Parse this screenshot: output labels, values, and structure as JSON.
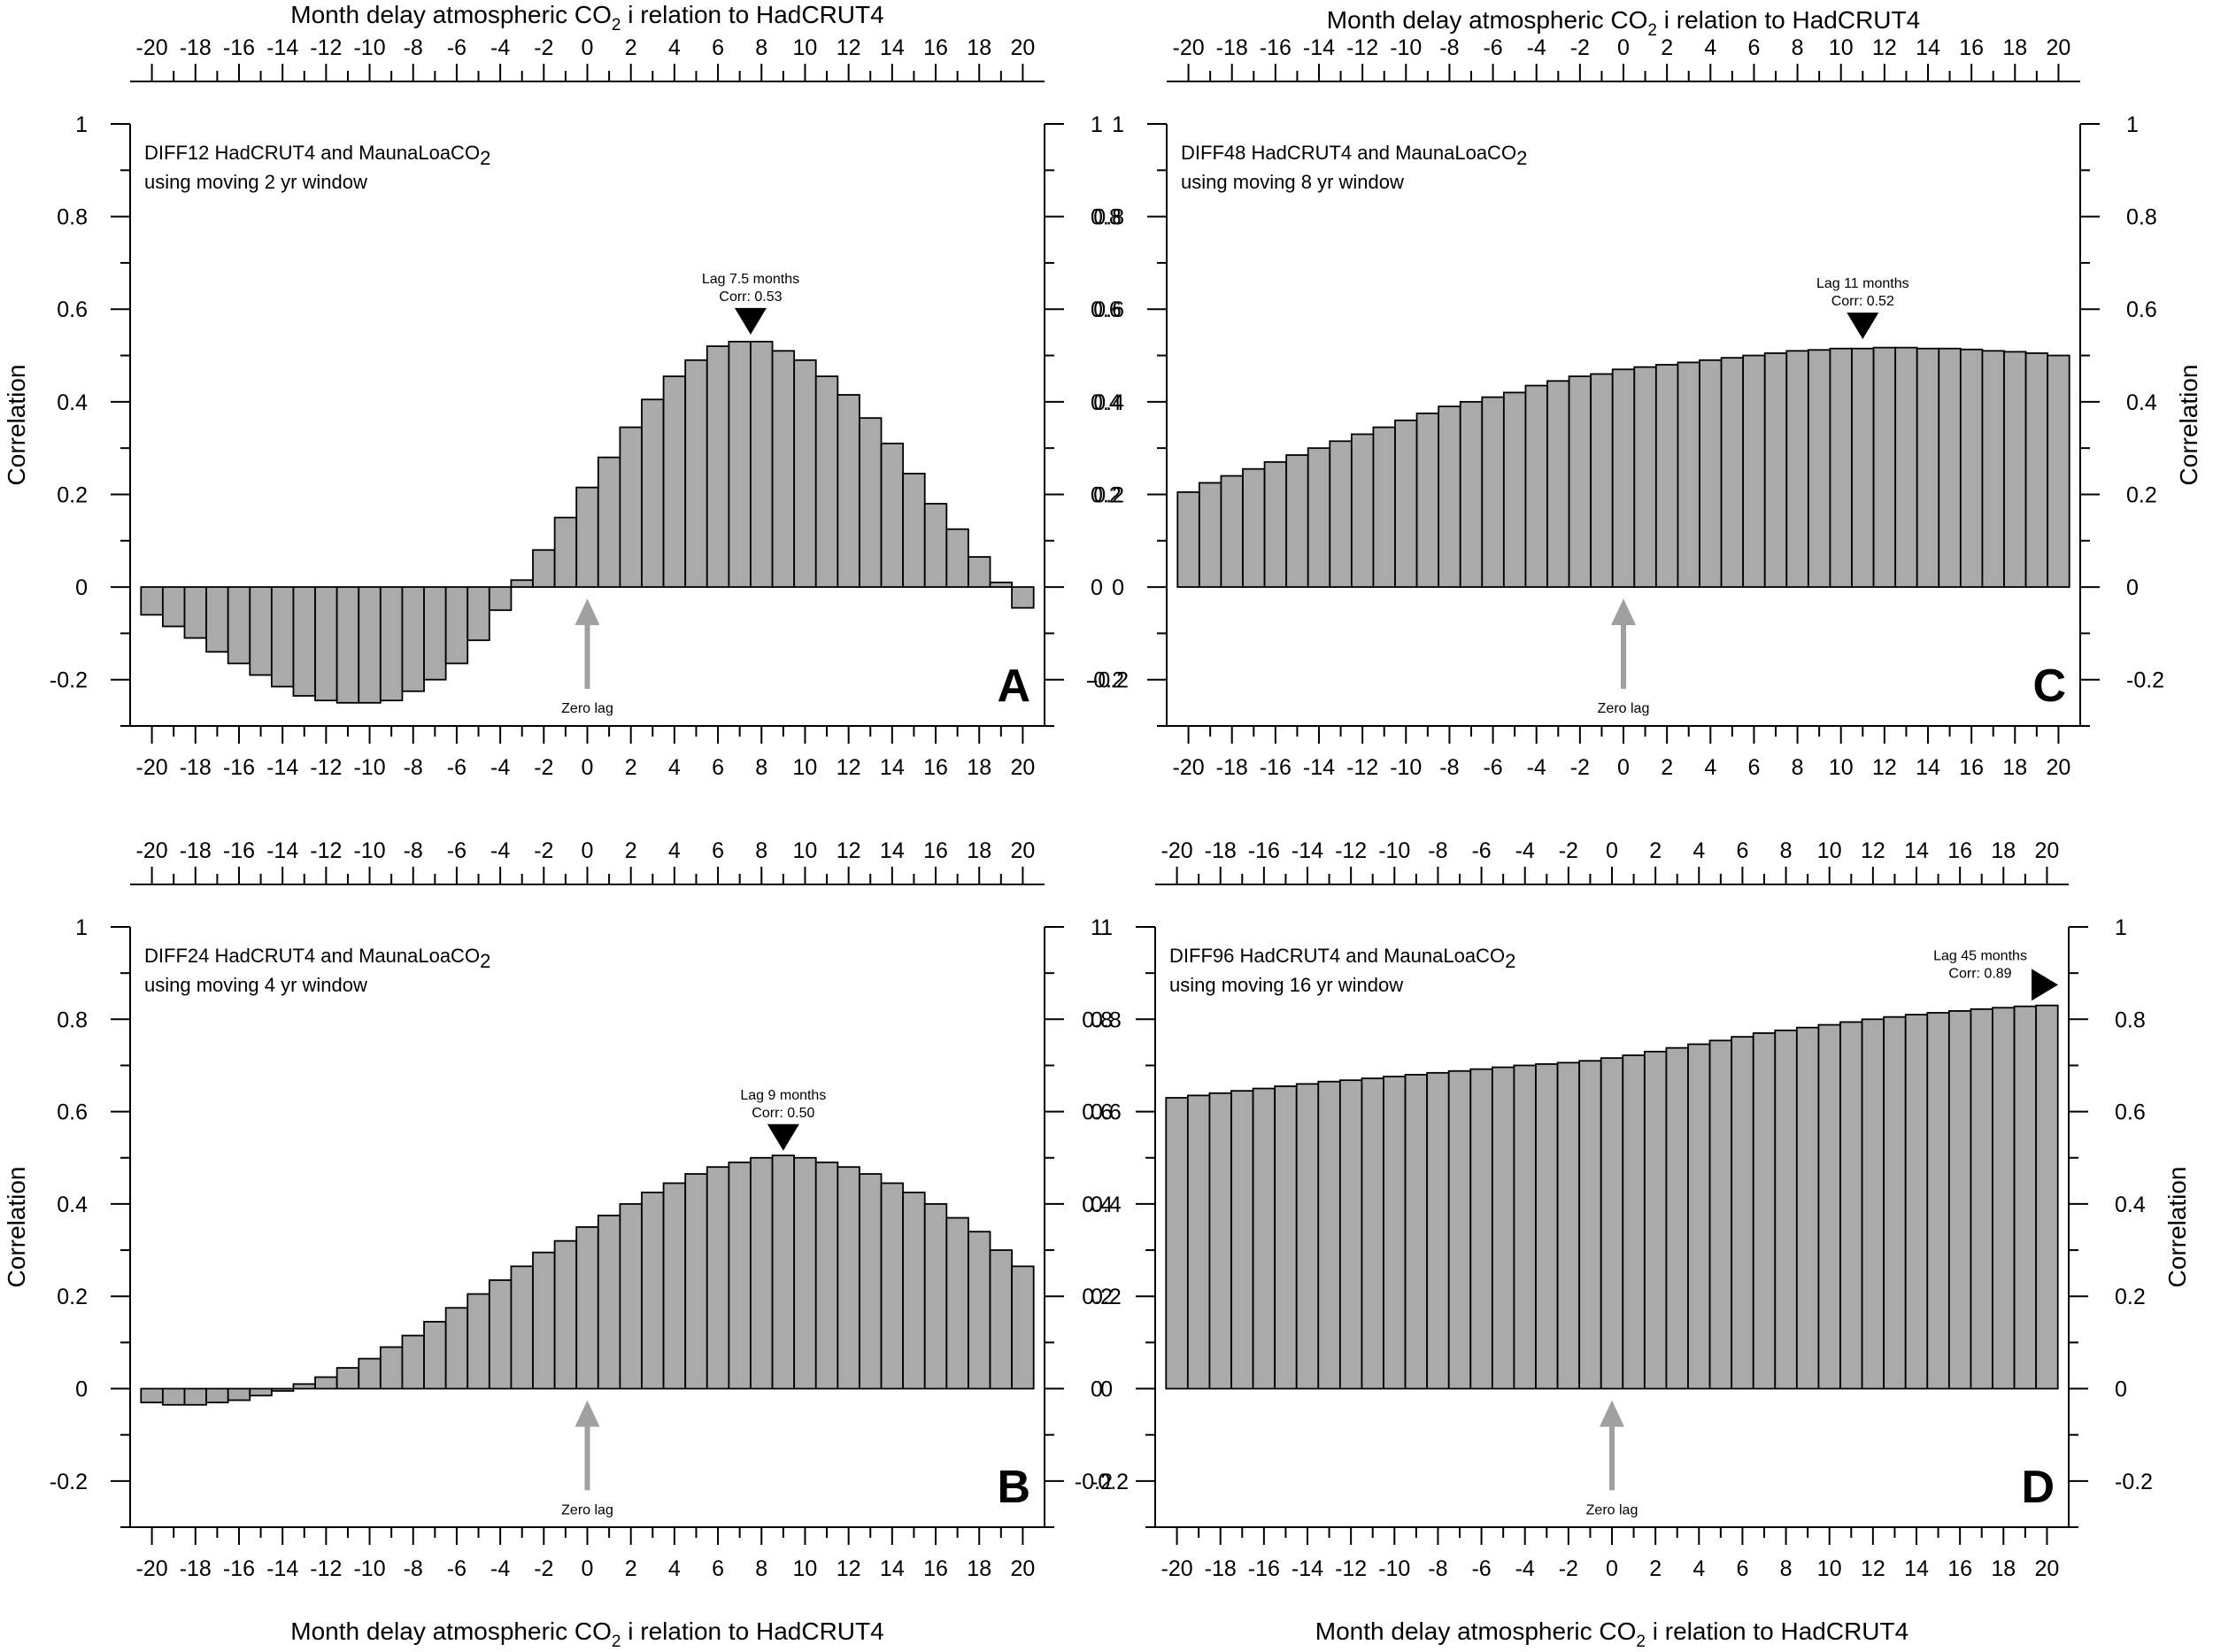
{
  "chart_data": [
    {
      "type": "bar",
      "panel_letter": "A",
      "title": "DIFF12 HadCRUT4 and MaunaLoaCO",
      "title_sub": "2",
      "subtitle": "using moving 2 yr window",
      "xlabel_top": {
        "pre": "Month delay atmospheric CO",
        "sub": "2",
        "post": " i relation to HadCRUT4"
      },
      "xlabel_bottom": null,
      "ylabel_left": "Correlation",
      "ylabel_right": null,
      "xlim": [
        -21,
        21
      ],
      "ylim": [
        -0.3,
        1.0
      ],
      "x_ticks": [
        -20,
        -18,
        -16,
        -14,
        -12,
        -10,
        -8,
        -6,
        -4,
        -2,
        0,
        2,
        4,
        6,
        8,
        10,
        12,
        14,
        16,
        18,
        20
      ],
      "y_ticks": [
        -0.2,
        0,
        0.2,
        0.4,
        0.6,
        0.8,
        1
      ],
      "y_tick_labels": [
        "-0.2",
        "0",
        "0.2",
        "0.4",
        "0.6",
        "0.8",
        "1"
      ],
      "x": [
        -20,
        -19,
        -18,
        -17,
        -16,
        -15,
        -14,
        -13,
        -12,
        -11,
        -10,
        -9,
        -8,
        -7,
        -6,
        -5,
        -4,
        -3,
        -2,
        -1,
        0,
        1,
        2,
        3,
        4,
        5,
        6,
        7,
        8,
        9,
        10,
        11,
        12,
        13,
        14,
        15,
        16,
        17,
        18,
        19,
        20
      ],
      "values": [
        -0.06,
        -0.085,
        -0.11,
        -0.14,
        -0.165,
        -0.19,
        -0.215,
        -0.235,
        -0.245,
        -0.25,
        -0.25,
        -0.245,
        -0.225,
        -0.2,
        -0.165,
        -0.115,
        -0.05,
        0.015,
        0.08,
        0.15,
        0.215,
        0.28,
        0.345,
        0.405,
        0.455,
        0.49,
        0.52,
        0.53,
        0.53,
        0.51,
        0.49,
        0.455,
        0.415,
        0.365,
        0.31,
        0.245,
        0.18,
        0.125,
        0.065,
        0.01,
        -0.045
      ],
      "annotation": {
        "lines": [
          "Lag 7.5 months",
          "Corr: 0.53"
        ],
        "x": 7.5,
        "y": 0.53,
        "marker": "down"
      },
      "zero_lag_label": "Zero lag"
    },
    {
      "type": "bar",
      "panel_letter": "C",
      "title": "DIFF48 HadCRUT4 and MaunaLoaCO",
      "title_sub": "2",
      "subtitle": "using moving 8 yr window",
      "xlabel_top": {
        "pre": "Month delay atmospheric CO",
        "sub": "2",
        "post": " i relation to HadCRUT4"
      },
      "xlabel_bottom": null,
      "ylabel_left": null,
      "ylabel_right": "Correlation",
      "xlim": [
        -21,
        21
      ],
      "ylim": [
        -0.3,
        1.0
      ],
      "x_ticks": [
        -20,
        -18,
        -16,
        -14,
        -12,
        -10,
        -8,
        -6,
        -4,
        -2,
        0,
        2,
        4,
        6,
        8,
        10,
        12,
        14,
        16,
        18,
        20
      ],
      "y_ticks": [
        -0.2,
        0,
        0.2,
        0.4,
        0.6,
        0.8,
        1
      ],
      "y_tick_labels": [
        "-0.2",
        "0",
        "0.2",
        "0.4",
        "0.6",
        "0.8",
        "1"
      ],
      "x": [
        -20,
        -19,
        -18,
        -17,
        -16,
        -15,
        -14,
        -13,
        -12,
        -11,
        -10,
        -9,
        -8,
        -7,
        -6,
        -5,
        -4,
        -3,
        -2,
        -1,
        0,
        1,
        2,
        3,
        4,
        5,
        6,
        7,
        8,
        9,
        10,
        11,
        12,
        13,
        14,
        15,
        16,
        17,
        18,
        19,
        20
      ],
      "values": [
        0.205,
        0.225,
        0.24,
        0.255,
        0.27,
        0.285,
        0.3,
        0.315,
        0.33,
        0.345,
        0.36,
        0.375,
        0.39,
        0.4,
        0.41,
        0.42,
        0.435,
        0.445,
        0.455,
        0.46,
        0.47,
        0.475,
        0.48,
        0.485,
        0.49,
        0.495,
        0.5,
        0.505,
        0.51,
        0.512,
        0.515,
        0.515,
        0.517,
        0.517,
        0.515,
        0.515,
        0.513,
        0.51,
        0.508,
        0.505,
        0.5
      ],
      "annotation": {
        "lines": [
          "Lag 11 months",
          "Corr: 0.52"
        ],
        "x": 11,
        "y": 0.52,
        "marker": "down"
      },
      "zero_lag_label": "Zero lag"
    },
    {
      "type": "bar",
      "panel_letter": "B",
      "title": "DIFF24 HadCRUT4 and MaunaLoaCO",
      "title_sub": "2",
      "subtitle": "using moving 4 yr window",
      "xlabel_top": null,
      "xlabel_bottom": {
        "pre": "Month delay atmospheric CO",
        "sub": "2",
        "post": " i relation to HadCRUT4"
      },
      "ylabel_left": "Correlation",
      "ylabel_right": null,
      "xlim": [
        -21,
        21
      ],
      "ylim": [
        -0.3,
        1.0
      ],
      "x_ticks": [
        -20,
        -18,
        -16,
        -14,
        -12,
        -10,
        -8,
        -6,
        -4,
        -2,
        0,
        2,
        4,
        6,
        8,
        10,
        12,
        14,
        16,
        18,
        20
      ],
      "y_ticks": [
        -0.2,
        0,
        0.2,
        0.4,
        0.6,
        0.8,
        1
      ],
      "y_tick_labels": [
        "-0.2",
        "0",
        "0.2",
        "0.4",
        "0.6",
        "0.8",
        "1"
      ],
      "x": [
        -20,
        -19,
        -18,
        -17,
        -16,
        -15,
        -14,
        -13,
        -12,
        -11,
        -10,
        -9,
        -8,
        -7,
        -6,
        -5,
        -4,
        -3,
        -2,
        -1,
        0,
        1,
        2,
        3,
        4,
        5,
        6,
        7,
        8,
        9,
        10,
        11,
        12,
        13,
        14,
        15,
        16,
        17,
        18,
        19,
        20
      ],
      "values": [
        -0.03,
        -0.035,
        -0.035,
        -0.03,
        -0.025,
        -0.015,
        -0.005,
        0.01,
        0.025,
        0.045,
        0.065,
        0.09,
        0.115,
        0.145,
        0.175,
        0.205,
        0.235,
        0.265,
        0.295,
        0.32,
        0.35,
        0.375,
        0.4,
        0.425,
        0.445,
        0.465,
        0.48,
        0.49,
        0.5,
        0.505,
        0.5,
        0.49,
        0.48,
        0.465,
        0.445,
        0.425,
        0.4,
        0.37,
        0.34,
        0.3,
        0.265
      ],
      "annotation": {
        "lines": [
          "Lag 9 months",
          "Corr: 0.50"
        ],
        "x": 9,
        "y": 0.5,
        "marker": "down"
      },
      "zero_lag_label": "Zero lag"
    },
    {
      "type": "bar",
      "panel_letter": "D",
      "title": "DIFF96 HadCRUT4 and MaunaLoaCO",
      "title_sub": "2",
      "subtitle": "using moving 16 yr window",
      "xlabel_top": null,
      "xlabel_bottom": {
        "pre": "Month delay atmospheric CO",
        "sub": "2",
        "post": " i relation to HadCRUT4"
      },
      "ylabel_left": null,
      "ylabel_right": "Correlation",
      "xlim": [
        -21,
        21
      ],
      "ylim": [
        -0.3,
        1.0
      ],
      "x_ticks": [
        -20,
        -18,
        -16,
        -14,
        -12,
        -10,
        -8,
        -6,
        -4,
        -2,
        0,
        2,
        4,
        6,
        8,
        10,
        12,
        14,
        16,
        18,
        20
      ],
      "y_ticks": [
        -0.2,
        0,
        0.2,
        0.4,
        0.6,
        0.8,
        1
      ],
      "y_tick_labels": [
        "-0.2",
        "0",
        "0.2",
        "0.4",
        "0.6",
        "0.8",
        "1"
      ],
      "x": [
        -20,
        -19,
        -18,
        -17,
        -16,
        -15,
        -14,
        -13,
        -12,
        -11,
        -10,
        -9,
        -8,
        -7,
        -6,
        -5,
        -4,
        -3,
        -2,
        -1,
        0,
        1,
        2,
        3,
        4,
        5,
        6,
        7,
        8,
        9,
        10,
        11,
        12,
        13,
        14,
        15,
        16,
        17,
        18,
        19,
        20
      ],
      "values": [
        0.63,
        0.635,
        0.64,
        0.645,
        0.65,
        0.655,
        0.66,
        0.665,
        0.668,
        0.672,
        0.676,
        0.68,
        0.684,
        0.688,
        0.692,
        0.696,
        0.7,
        0.703,
        0.706,
        0.71,
        0.716,
        0.722,
        0.73,
        0.738,
        0.746,
        0.754,
        0.762,
        0.77,
        0.776,
        0.782,
        0.788,
        0.794,
        0.8,
        0.805,
        0.81,
        0.814,
        0.818,
        0.822,
        0.825,
        0.828,
        0.83
      ],
      "annotation": {
        "lines": [
          "Lag 45 months",
          "Corr: 0.89"
        ],
        "y": 0.89,
        "marker": "right"
      },
      "zero_lag_label": "Zero lag"
    }
  ],
  "colors": {
    "bar_fill": "#aaaaaa",
    "bar_stroke": "#000000",
    "zero_lag_arrow": "#a0a0a0",
    "marker": "#000000"
  }
}
